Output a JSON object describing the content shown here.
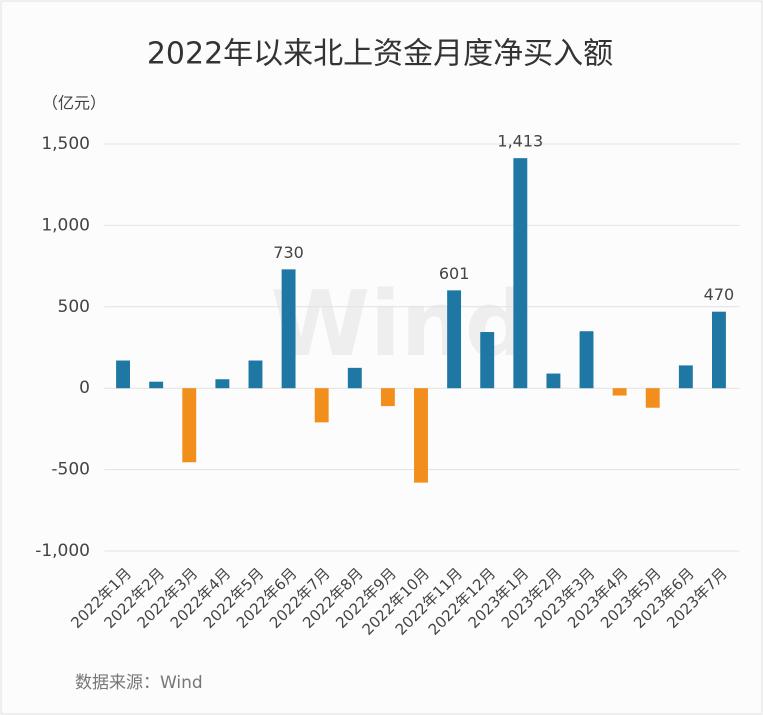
{
  "chart_data": {
    "type": "bar",
    "title": "2022年以来北上资金月度净买入额",
    "unit_label": "（亿元）",
    "source": "数据来源：Wind",
    "watermark": "Wind",
    "categories": [
      "2022年1月",
      "2022年2月",
      "2022年3月",
      "2022年4月",
      "2022年5月",
      "2022年6月",
      "2022年7月",
      "2022年8月",
      "2022年9月",
      "2022年10月",
      "2022年11月",
      "2022年12月",
      "2023年1月",
      "2023年2月",
      "2023年3月",
      "2023年4月",
      "2023年5月",
      "2023年6月",
      "2023年7月"
    ],
    "values": [
      170,
      40,
      -455,
      55,
      170,
      730,
      -210,
      125,
      -110,
      -580,
      601,
      345,
      1413,
      90,
      350,
      -45,
      -120,
      140,
      470
    ],
    "value_labels": [
      null,
      null,
      null,
      null,
      null,
      "730",
      null,
      null,
      null,
      null,
      "601",
      null,
      "1,413",
      null,
      null,
      null,
      null,
      null,
      "470"
    ],
    "positive_color": "#1f77a4",
    "negative_color": "#f28e1c",
    "ylim": [
      -1000,
      1500
    ],
    "yticks": [
      {
        "value": -1000,
        "label": "-1,000"
      },
      -500,
      0,
      500,
      {
        "value": 1000,
        "label": "1,000"
      },
      {
        "value": 1500,
        "label": "1,500"
      }
    ],
    "grid": true
  }
}
